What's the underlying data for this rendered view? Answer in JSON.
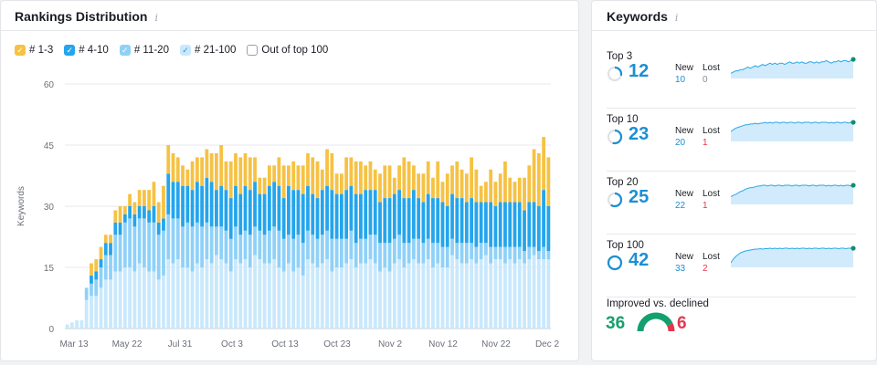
{
  "rankings": {
    "title": "Rankings Distribution",
    "info_glyph": "i",
    "legend": [
      {
        "label": "# 1-3",
        "color": "#f6c244",
        "checked": true
      },
      {
        "label": "# 4-10",
        "color": "#24a5ec",
        "checked": true
      },
      {
        "label": "# 11-20",
        "color": "#8fd1f8",
        "checked": true
      },
      {
        "label": "# 21-100",
        "color": "#c9e8fc",
        "checked": true
      },
      {
        "label": "Out of top 100",
        "color": "#ffffff",
        "checked": false
      }
    ]
  },
  "chart_data": {
    "type": "bar",
    "stacked": true,
    "ylabel": "Keywords",
    "ylim": [
      0,
      60
    ],
    "yticks": [
      0,
      15,
      30,
      45,
      60
    ],
    "xtick_labels": [
      "Mar 13",
      "May 22",
      "Jul 31",
      "Oct 3",
      "Oct 13",
      "Oct 23",
      "Nov 2",
      "Nov 12",
      "Nov 22",
      "Dec 2"
    ],
    "series": [
      {
        "name": "# 21-100",
        "color": "#c9e8fc",
        "values": [
          1,
          1.5,
          2,
          2,
          7,
          8,
          8,
          10,
          12,
          12,
          14,
          14,
          15,
          15,
          14,
          16,
          15,
          14,
          14,
          12,
          13,
          17,
          16,
          17,
          15,
          15,
          14,
          16,
          15,
          17,
          16,
          18,
          17,
          16,
          14,
          17,
          16,
          17,
          15,
          18,
          17,
          16,
          16,
          17,
          15,
          14,
          16,
          14,
          15,
          13,
          17,
          16,
          15,
          16,
          17,
          14,
          15,
          15,
          16,
          17,
          15,
          16,
          16,
          17,
          16,
          14,
          15,
          14,
          16,
          17,
          15,
          16,
          17,
          16,
          16,
          17,
          15,
          16,
          15,
          15,
          18,
          17,
          16,
          16,
          17,
          16,
          17,
          18,
          16,
          17,
          17,
          16,
          17,
          16,
          17,
          16,
          17,
          18,
          17,
          17,
          17
        ]
      },
      {
        "name": "# 11-20",
        "color": "#8fd1f8",
        "values": [
          0,
          0,
          0,
          0,
          3,
          3,
          4,
          5,
          6,
          6,
          9,
          9,
          11,
          12,
          11,
          11,
          12,
          12,
          12,
          11,
          11,
          11,
          11,
          10,
          10,
          11,
          11,
          10,
          10,
          9,
          9,
          7,
          8,
          8,
          8,
          8,
          7,
          7,
          8,
          7,
          7,
          7,
          8,
          8,
          9,
          8,
          7,
          8,
          8,
          8,
          7,
          7,
          7,
          7,
          7,
          8,
          7,
          7,
          6,
          7,
          6,
          6,
          6,
          6,
          7,
          7,
          6,
          7,
          6,
          6,
          6,
          5,
          5,
          6,
          5,
          5,
          6,
          5,
          5,
          5,
          4,
          4,
          5,
          5,
          4,
          4,
          4,
          3,
          4,
          3,
          3,
          4,
          3,
          4,
          3,
          3,
          3,
          2,
          2,
          3,
          2
        ]
      },
      {
        "name": "# 4-10",
        "color": "#24a5ec",
        "values": [
          0,
          0,
          0,
          0,
          0,
          2,
          2,
          2,
          3,
          3,
          3,
          3,
          2,
          3,
          3,
          3,
          3,
          3,
          4,
          3,
          3,
          10,
          9,
          9,
          10,
          9,
          9,
          10,
          10,
          11,
          11,
          9,
          10,
          10,
          10,
          10,
          10,
          11,
          11,
          11,
          9,
          10,
          11,
          11,
          11,
          10,
          12,
          12,
          11,
          12,
          11,
          10,
          10,
          11,
          11,
          12,
          11,
          11,
          12,
          11,
          12,
          11,
          12,
          11,
          11,
          10,
          11,
          11,
          11,
          11,
          11,
          11,
          12,
          10,
          10,
          11,
          11,
          11,
          11,
          10,
          11,
          11,
          11,
          10,
          11,
          11,
          10,
          10,
          11,
          10,
          11,
          11,
          11,
          11,
          11,
          10,
          11,
          11,
          11,
          14,
          11
        ]
      },
      {
        "name": "# 1-3",
        "color": "#f6c244",
        "values": [
          0,
          0,
          0,
          0,
          0,
          3,
          3,
          3,
          2,
          2,
          3,
          4,
          2,
          3,
          3,
          4,
          4,
          5,
          6,
          5,
          8,
          7,
          7,
          6,
          5,
          4,
          7,
          6,
          7,
          7,
          7,
          9,
          10,
          7,
          9,
          8,
          9,
          8,
          8,
          6,
          4,
          4,
          5,
          4,
          7,
          8,
          5,
          7,
          6,
          7,
          8,
          9,
          9,
          5,
          9,
          9,
          5,
          5,
          8,
          7,
          8,
          8,
          6,
          7,
          5,
          7,
          8,
          8,
          4,
          6,
          10,
          9,
          6,
          6,
          7,
          8,
          5,
          9,
          5,
          8,
          7,
          9,
          7,
          7,
          10,
          8,
          4,
          5,
          8,
          6,
          7,
          10,
          6,
          5,
          6,
          8,
          9,
          13,
          13,
          13,
          12
        ]
      }
    ]
  },
  "keywords": {
    "title": "Keywords",
    "info_glyph": "i",
    "new_label": "New",
    "lost_label": "Lost",
    "rows": [
      {
        "label": "Top 3",
        "value": "12",
        "new": "10",
        "lost": "0",
        "fraction": 0.29,
        "spark": [
          4,
          5,
          6,
          6,
          7,
          7,
          8,
          9,
          8,
          9,
          10,
          9,
          10,
          11,
          10,
          11,
          12,
          11,
          12,
          11,
          12,
          12,
          11,
          12,
          13,
          12,
          12,
          13,
          12,
          13,
          12,
          12,
          13,
          13,
          12,
          13,
          12,
          13,
          13,
          14,
          13,
          12,
          13,
          13,
          14,
          13,
          14,
          14,
          13,
          14,
          15
        ]
      },
      {
        "label": "Top 10",
        "value": "23",
        "new": "20",
        "lost": "1",
        "fraction": 0.55,
        "spark": [
          12,
          14,
          16,
          17,
          18,
          19,
          20,
          20,
          21,
          21,
          22,
          21,
          22,
          22,
          23,
          22,
          23,
          22,
          23,
          23,
          22,
          23,
          23,
          22,
          23,
          23,
          22,
          23,
          23,
          22,
          23,
          23,
          23,
          22,
          23,
          23,
          22,
          23,
          23,
          23,
          22,
          23,
          22,
          23,
          23,
          22,
          23,
          23,
          22,
          23,
          23
        ]
      },
      {
        "label": "Top 20",
        "value": "25",
        "new": "22",
        "lost": "1",
        "fraction": 0.6,
        "spark": [
          10,
          12,
          13,
          15,
          17,
          18,
          20,
          21,
          22,
          22,
          23,
          24,
          24,
          25,
          25,
          24,
          25,
          25,
          24,
          25,
          25,
          24,
          25,
          25,
          25,
          24,
          25,
          25,
          24,
          25,
          25,
          25,
          24,
          25,
          25,
          24,
          25,
          25,
          25,
          24,
          25,
          24,
          25,
          25,
          24,
          25,
          24,
          25,
          25,
          24,
          25
        ]
      },
      {
        "label": "Top 100",
        "value": "42",
        "new": "33",
        "lost": "2",
        "fraction": 1.0,
        "spark": [
          10,
          18,
          24,
          28,
          32,
          34,
          36,
          37,
          38,
          39,
          40,
          40,
          41,
          40,
          41,
          41,
          42,
          41,
          42,
          41,
          42,
          41,
          42,
          42,
          41,
          42,
          41,
          42,
          41,
          42,
          42,
          41,
          42,
          41,
          42,
          42,
          41,
          42,
          42,
          41,
          42,
          41,
          42,
          42,
          41,
          42,
          42,
          41,
          42,
          42,
          42
        ]
      }
    ],
    "improved_label": "Improved vs. declined",
    "improved": "36",
    "declined": "6",
    "improved_fraction": 0.857,
    "colors": {
      "blue": "#1b8fd5",
      "green": "#14a06e",
      "red": "#e3374f",
      "spark_fill": "#c9e8fc",
      "spark_line": "#2aa8e8",
      "end_dot": "#0f8f6a"
    }
  }
}
